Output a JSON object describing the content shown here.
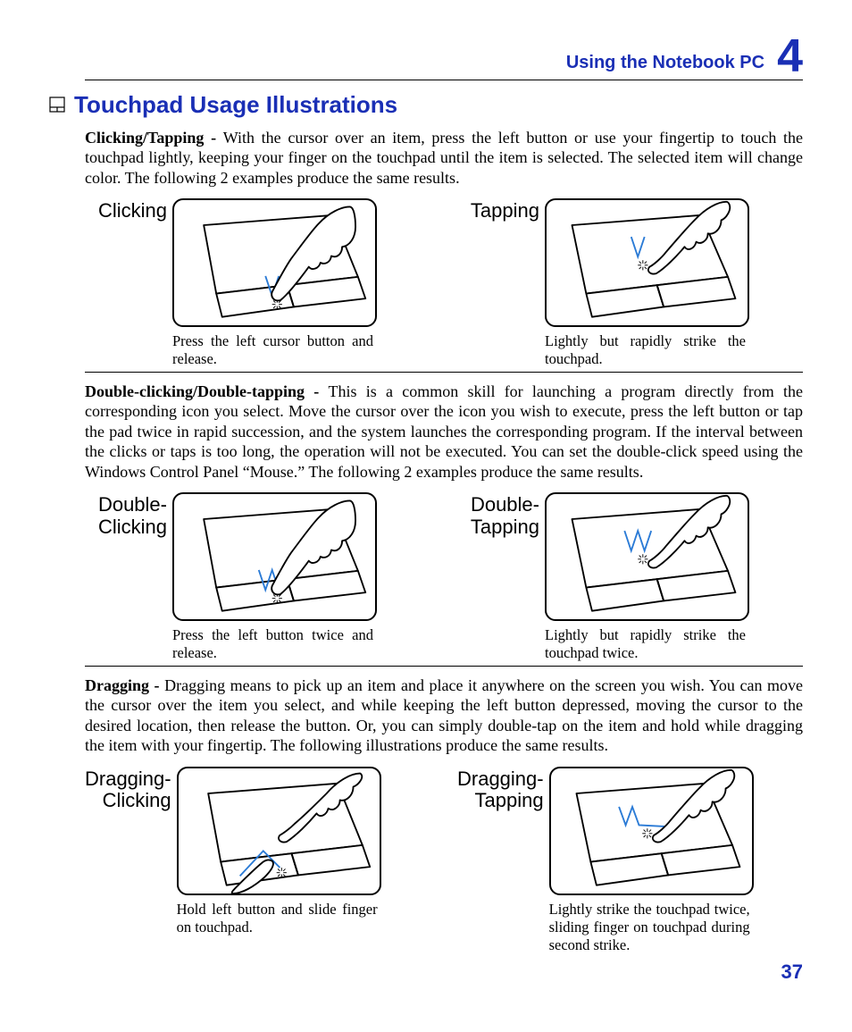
{
  "colors": {
    "accent": "#1a2fb5",
    "stroke": "#000000",
    "motion": "#2b7bd6",
    "bg": "#ffffff"
  },
  "header": {
    "title": "Using the Notebook PC",
    "chapter": "4"
  },
  "section_title": "Touchpad Usage Illustrations",
  "page_number": "37",
  "paragraphs": {
    "p1_lead": "Clicking/Tapping - ",
    "p1": "With the cursor over an item, press the left button or use your fingertip to touch the touchpad lightly, keeping your finger on the touchpad until the item is selected. The selected item will change color. The following 2 examples produce the same results.",
    "p2_lead": "Double-clicking/Double-tapping - ",
    "p2": "This is a common skill for launching a program directly from the corresponding icon you select. Move the cursor over the icon you wish to execute, press the left button or tap the pad twice in rapid succession, and the system launches the corresponding program. If the interval between the clicks or taps is too long, the operation will not be executed. You can set the double-click speed using the Windows Control Panel “Mouse.” The following 2 examples produce the same results.",
    "p3_lead": "Dragging - ",
    "p3": "Dragging means to pick up an item and place it anywhere on the screen you wish. You can move the cursor over the item you select, and while keeping the left button depressed, moving the cursor to the desired location, then release the button. Or, you can simply double-tap on the item and hold while dragging the item with your fingertip. The following illustrations produce the same results."
  },
  "rows": [
    {
      "left": {
        "label": "Clicking",
        "caption": "Press the left cursor button and release.",
        "motion": "V",
        "hand_on_button": true
      },
      "right": {
        "label": "Tapping",
        "caption": "Lightly but rapidly strike the touchpad.",
        "motion": "V",
        "hand_on_button": false
      }
    },
    {
      "left": {
        "label": "Double-\nClicking",
        "caption": "Press the left button twice and release.",
        "motion": "W",
        "hand_on_button": true
      },
      "right": {
        "label": "Double-\nTapping",
        "caption": "Lightly but rapidly strike the touchpad twice.",
        "motion": "W",
        "hand_on_button": false
      }
    },
    {
      "left": {
        "label": "Dragging-\nClicking",
        "caption": "Hold left button and slide finger on touchpad.",
        "motion": "drag",
        "hand_on_button": true
      },
      "right": {
        "label": "Dragging-\nTapping",
        "caption": "Lightly strike the touchpad twice, sliding finger on touchpad during second strike.",
        "motion": "Wdrag",
        "hand_on_button": false
      }
    }
  ]
}
